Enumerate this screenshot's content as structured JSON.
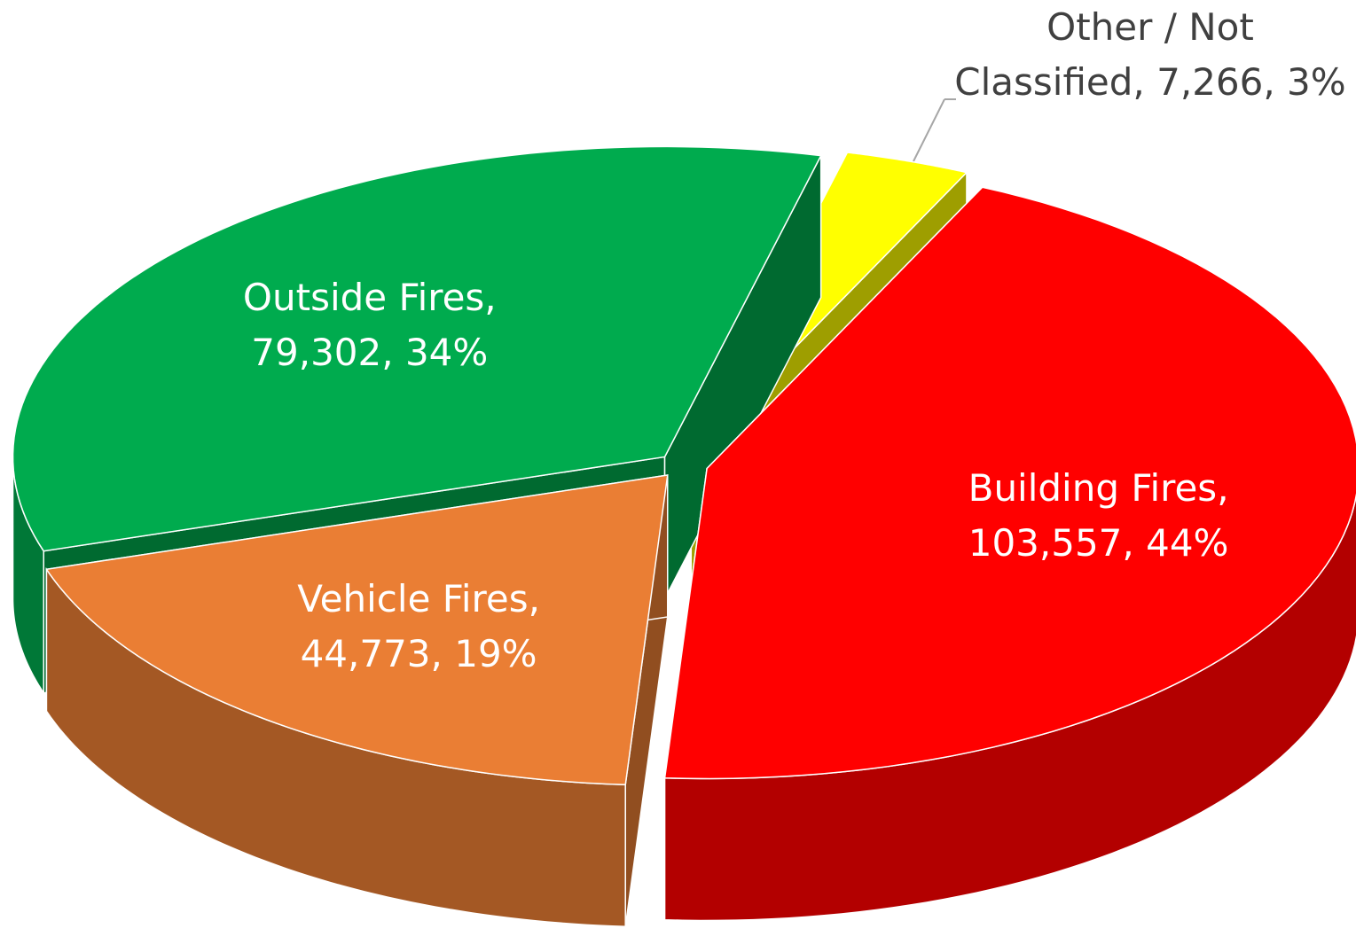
{
  "chart_data": {
    "type": "pie3d",
    "categories": [
      "Building Fires",
      "Vehicle Fires",
      "Outside Fires",
      "Other / Not Classified"
    ],
    "values": [
      103557,
      44773,
      79302,
      7266
    ],
    "value_labels": [
      "Building Fires, 103,557, 44%",
      "Vehicle Fires, 44,773, 19%",
      "Outside Fires, 79,302, 34%",
      "Other / Not Classified, 7,266, 3%"
    ],
    "colors": [
      "#ff0000",
      "#ea7e34",
      "#00ab4e",
      "#ffff00"
    ]
  }
}
